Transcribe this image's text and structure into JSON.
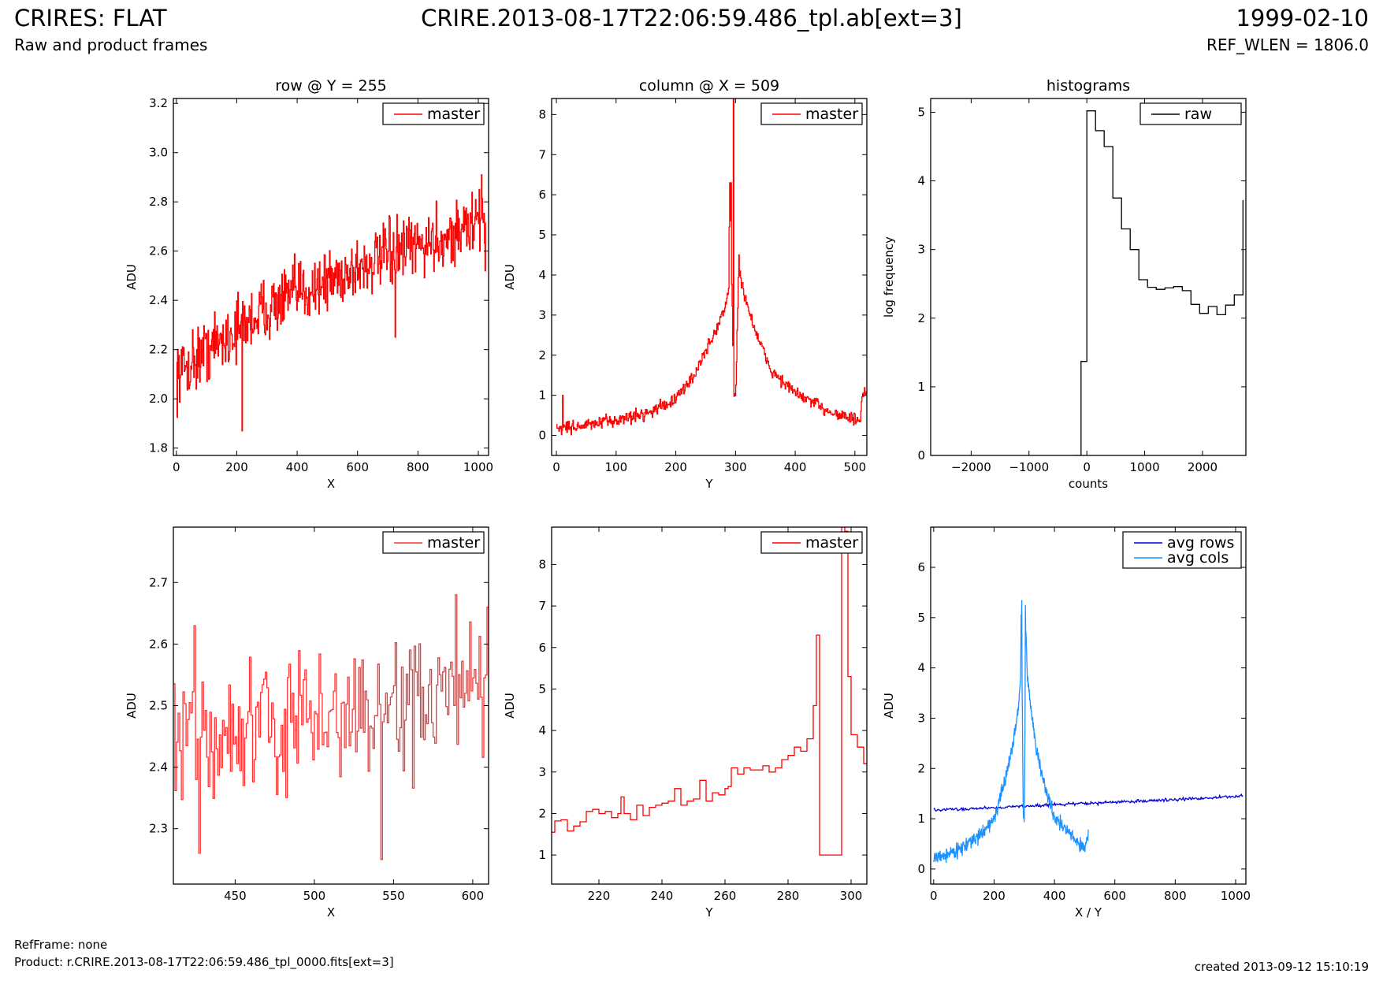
{
  "header": {
    "title": "CRIRES: FLAT",
    "subtitle": "Raw and product frames",
    "file": "CRIRE.2013-08-17T22:06:59.486_tpl.ab[ext=3]",
    "date": "1999-02-10",
    "ref_wlen": "REF_WLEN = 1806.0"
  },
  "footer": {
    "refframe": "RefFrame: none",
    "product": "Product: r.CRIRE.2013-08-17T22:06:59.486_tpl_0000.fits[ext=3]",
    "created": "created 2013-09-12 15:10:19"
  },
  "colors": {
    "master": "#ff0000",
    "master_zoom": "#ff3333",
    "raw": "#000000",
    "avg_rows": "#0000dd",
    "avg_cols": "#1e90ff"
  },
  "chart_data": [
    {
      "type": "line",
      "id": "row",
      "title": "row @ Y = 255",
      "xlabel": "X",
      "ylabel": "ADU",
      "xlim": [
        -10,
        1034
      ],
      "ylim": [
        1.77,
        3.22
      ],
      "xticks": [
        0,
        200,
        400,
        600,
        800,
        1000
      ],
      "yticks": [
        1.8,
        2.0,
        2.2,
        2.4,
        2.6,
        2.8,
        3.0,
        3.2
      ],
      "ytick_decimals": 1,
      "legend": "top-right",
      "series": [
        {
          "name": "master",
          "color": "#ff0000",
          "step": true,
          "noise": 0.11,
          "npts": 520,
          "x": [
            0,
            100,
            200,
            300,
            400,
            500,
            600,
            700,
            800,
            900,
            1000,
            1024
          ],
          "y": [
            2.1,
            2.2,
            2.28,
            2.37,
            2.43,
            2.48,
            2.53,
            2.58,
            2.62,
            2.66,
            2.72,
            2.72
          ],
          "spikes": [
            [
              218,
              1.87
            ],
            [
              725,
              2.25
            ],
            [
              1010,
              2.91
            ],
            [
              1022,
              2.52
            ]
          ]
        }
      ]
    },
    {
      "type": "line",
      "id": "col",
      "title": "column @ X = 509",
      "xlabel": "Y",
      "ylabel": "ADU",
      "xlim": [
        -8,
        520
      ],
      "ylim": [
        -0.5,
        8.4
      ],
      "xticks": [
        0,
        100,
        200,
        300,
        400,
        500
      ],
      "yticks": [
        0,
        1,
        2,
        3,
        4,
        5,
        6,
        7,
        8
      ],
      "ytick_decimals": 0,
      "legend": "top-right",
      "series": [
        {
          "name": "master",
          "color": "#ff0000",
          "step": true,
          "noise": 0.14,
          "npts": 510,
          "x": [
            0,
            50,
            100,
            150,
            200,
            230,
            260,
            280,
            288,
            290,
            297,
            300,
            305,
            310,
            320,
            340,
            360,
            400,
            450,
            500,
            509,
            512,
            520
          ],
          "y": [
            0.18,
            0.25,
            0.38,
            0.55,
            0.9,
            1.5,
            2.4,
            3.1,
            3.6,
            6.3,
            1.0,
            1.0,
            4.2,
            3.8,
            3.2,
            2.3,
            1.6,
            1.05,
            0.65,
            0.38,
            0.38,
            1.0,
            1.0
          ],
          "spikes": [
            [
              10,
              1.0
            ],
            [
              292,
              6.3
            ],
            [
              296,
              8.4
            ],
            [
              305,
              4.5
            ]
          ]
        }
      ]
    },
    {
      "type": "line",
      "id": "hist",
      "title": "histograms",
      "xlabel": "counts",
      "ylabel": "log frequency",
      "xlim": [
        -2700,
        2750
      ],
      "ylim": [
        0,
        5.2
      ],
      "xticks": [
        -2000,
        -1000,
        0,
        1000,
        2000
      ],
      "yticks": [
        0,
        1,
        2,
        3,
        4,
        5
      ],
      "ytick_decimals": 0,
      "legend": "top-right",
      "series": [
        {
          "name": "raw",
          "color": "#000000",
          "step": true,
          "x": [
            -240,
            -100,
            0,
            150,
            300,
            450,
            600,
            750,
            900,
            1050,
            1200,
            1350,
            1500,
            1650,
            1800,
            1950,
            2100,
            2250,
            2400,
            2550,
            2700
          ],
          "y": [
            0,
            1.37,
            5.02,
            4.73,
            4.5,
            3.75,
            3.3,
            3.0,
            2.56,
            2.45,
            2.42,
            2.44,
            2.46,
            2.4,
            2.2,
            2.07,
            2.17,
            2.05,
            2.19,
            2.34,
            3.72
          ]
        }
      ]
    },
    {
      "type": "line",
      "id": "rowzoom",
      "title": "",
      "xlabel": "X",
      "ylabel": "ADU",
      "xlim": [
        411,
        610
      ],
      "ylim": [
        2.21,
        2.79
      ],
      "xticks": [
        450,
        500,
        550,
        600
      ],
      "yticks": [
        2.3,
        2.4,
        2.5,
        2.6,
        2.7
      ],
      "ytick_decimals": 1,
      "legend": "top-right",
      "series": [
        {
          "name": "master",
          "color": "#ff3333",
          "step": true,
          "noise": 0.09,
          "npts": 200,
          "x": [
            411,
            610
          ],
          "y": [
            2.44,
            2.52
          ],
          "spikes": [
            [
              424,
              2.63
            ],
            [
              427,
              2.26
            ],
            [
              542,
              2.25
            ],
            [
              589,
              2.68
            ],
            [
              609,
              2.66
            ]
          ]
        }
      ]
    },
    {
      "type": "line",
      "id": "colzoom",
      "title": "",
      "xlabel": "Y",
      "ylabel": "ADU",
      "xlim": [
        205,
        305
      ],
      "ylim": [
        0.3,
        8.9
      ],
      "xticks": [
        220,
        240,
        260,
        280,
        300
      ],
      "yticks": [
        1,
        2,
        3,
        4,
        5,
        6,
        7,
        8
      ],
      "ytick_decimals": 0,
      "legend": "top-right",
      "series": [
        {
          "name": "master",
          "color": "#ff0000",
          "step": true,
          "x": [
            205,
            206,
            208,
            210,
            212,
            214,
            216,
            218,
            220,
            222,
            224,
            226,
            227,
            228,
            230,
            232,
            234,
            236,
            238,
            240,
            242,
            244,
            246,
            248,
            250,
            252,
            254,
            256,
            258,
            260,
            261,
            262,
            264,
            266,
            268,
            270,
            272,
            274,
            276,
            278,
            280,
            282,
            284,
            286,
            288,
            289,
            290,
            292,
            294,
            296,
            297,
            298,
            299,
            300,
            302,
            304,
            305
          ],
          "y": [
            1.55,
            1.82,
            1.85,
            1.58,
            1.7,
            1.8,
            2.05,
            2.1,
            2.0,
            2.05,
            1.9,
            2.0,
            2.4,
            2.0,
            1.85,
            2.2,
            1.95,
            2.15,
            2.2,
            2.25,
            2.3,
            2.6,
            2.2,
            2.3,
            2.35,
            2.8,
            2.3,
            2.5,
            2.45,
            2.6,
            2.65,
            3.1,
            2.95,
            3.1,
            3.05,
            3.05,
            3.15,
            3.0,
            3.1,
            3.3,
            3.4,
            3.6,
            3.5,
            3.8,
            4.6,
            6.3,
            1.0,
            1.0,
            1.0,
            1.0,
            8.9,
            8.8,
            5.3,
            3.9,
            3.6,
            3.2,
            3.2
          ]
        }
      ]
    },
    {
      "type": "line",
      "id": "avg",
      "title": "",
      "xlabel": "X / Y",
      "ylabel": "ADU",
      "xlim": [
        -10,
        1034
      ],
      "ylim": [
        -0.3,
        6.8
      ],
      "xticks": [
        0,
        200,
        400,
        600,
        800,
        1000
      ],
      "yticks": [
        0,
        1,
        2,
        3,
        4,
        5,
        6
      ],
      "ytick_decimals": 0,
      "legend": "top-right",
      "series": [
        {
          "name": "avg rows",
          "color": "#0000dd",
          "step": false,
          "noise": 0.025,
          "npts": 400,
          "x": [
            0,
            200,
            400,
            600,
            800,
            1024
          ],
          "y": [
            1.17,
            1.22,
            1.28,
            1.33,
            1.38,
            1.45
          ],
          "spikes": [
            [
              545,
              1.27
            ]
          ]
        },
        {
          "name": "avg cols",
          "color": "#1e90ff",
          "step": false,
          "noise": 0.12,
          "npts": 510,
          "x": [
            0,
            50,
            100,
            150,
            200,
            230,
            260,
            280,
            288,
            290,
            297,
            300,
            305,
            310,
            320,
            340,
            360,
            400,
            450,
            500,
            512
          ],
          "y": [
            0.22,
            0.3,
            0.45,
            0.65,
            1.0,
            1.6,
            2.4,
            3.2,
            3.8,
            5.3,
            1.0,
            1.0,
            4.9,
            3.8,
            3.3,
            2.4,
            1.8,
            1.05,
            0.7,
            0.4,
            0.75
          ],
          "spikes": [
            [
              292,
              5.35
            ],
            [
              298,
              1.0
            ],
            [
              304,
              5.25
            ]
          ]
        }
      ]
    }
  ]
}
